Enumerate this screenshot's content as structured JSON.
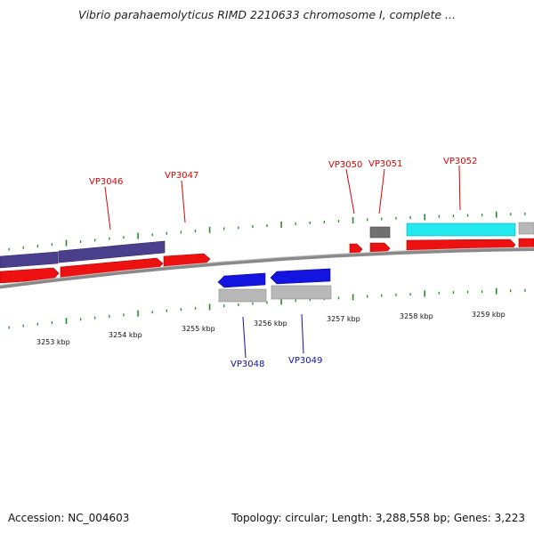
{
  "title": "Vibrio parahaemolyticus RIMD 2210633 chromosome I, complete ...",
  "footer": {
    "accession": "Accession: NC_004603",
    "summary": "Topology: circular; Length: 3,288,558 bp; Genes: 3,223"
  },
  "colors": {
    "forward_gene": "#ee1111",
    "reverse_gene": "#1414e0",
    "forward_label": "#dd0000",
    "reverse_label": "#1010b0",
    "cds_gray": "#b8b8b8",
    "dark_gray": "#707070",
    "cyan": "#22e8f0",
    "purple": "#4a3f8c",
    "tick": "#2a8a2a",
    "backbone": "#8a8a8a"
  },
  "axis_labels": [
    "3253 kbp",
    "3254 kbp",
    "3255 kbp",
    "3256 kbp",
    "3257 kbp",
    "3258 kbp",
    "3259 kbp"
  ],
  "forward_labels": [
    "VP3046",
    "VP3047",
    "VP3050",
    "VP3051",
    "VP3052"
  ],
  "reverse_labels": [
    "VP3048",
    "VP3049"
  ]
}
